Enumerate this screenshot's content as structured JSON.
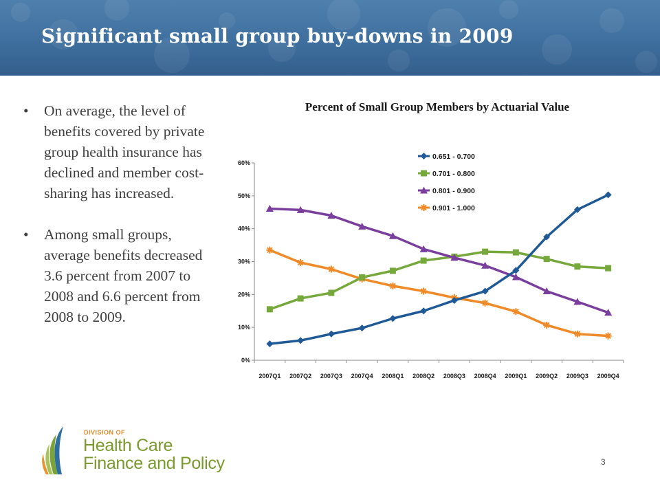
{
  "slide": {
    "title": "Significant small group buy-downs in 2009",
    "page_number": "3"
  },
  "bullets": [
    {
      "marker": "•",
      "text": "On average, the level of benefits covered by private group health insurance has declined and member cost-sharing has increased."
    },
    {
      "marker": "•",
      "text": "Among small groups, average benefits decreased 3.6 percent from 2007 to 2008 and 6.6 percent from 2008 to 2009."
    }
  ],
  "organization": {
    "prefix": "DIVISION OF",
    "line1": "Health Care",
    "line2": "Finance and Policy"
  },
  "colors": {
    "header": "#3f6f9e",
    "series": [
      "#1f5a96",
      "#76a83c",
      "#7a3f9d",
      "#f08a28"
    ]
  },
  "chart_data": {
    "type": "line",
    "title": "Percent of Small Group Members by Actuarial Value",
    "xlabel": "",
    "ylabel": "",
    "categories": [
      "2007Q1",
      "2007Q2",
      "2007Q3",
      "2007Q4",
      "2008Q1",
      "2008Q2",
      "2008Q3",
      "2008Q4",
      "2009Q1",
      "2009Q2",
      "2009Q3",
      "2009Q4"
    ],
    "ylim": [
      0,
      60
    ],
    "y_ticks": [
      0,
      10,
      20,
      30,
      40,
      50,
      60
    ],
    "y_tick_labels": [
      "0%",
      "10%",
      "20%",
      "30%",
      "40%",
      "50%",
      "60%"
    ],
    "grid": false,
    "legend_position": "top-center",
    "series": [
      {
        "name": "0.651 - 0.700",
        "marker": "diamond",
        "values": [
          5,
          6,
          8,
          9.8,
          12.7,
          15,
          18.2,
          21,
          27.3,
          37.5,
          45.8,
          50.3
        ]
      },
      {
        "name": "0.701 - 0.800",
        "marker": "square",
        "values": [
          15.5,
          18.8,
          20.5,
          25.2,
          27.2,
          30.3,
          31.5,
          33,
          32.8,
          30.8,
          28.5,
          28
        ]
      },
      {
        "name": "0.801 - 0.900",
        "marker": "triangle",
        "values": [
          46.1,
          45.7,
          44,
          40.7,
          37.8,
          33.8,
          31.2,
          28.8,
          25.3,
          21,
          17.8,
          14.5
        ]
      },
      {
        "name": "0.901 - 1.000",
        "marker": "asterisk",
        "values": [
          33.5,
          29.7,
          27.7,
          24.7,
          22.6,
          21,
          19,
          17.4,
          14.8,
          10.7,
          8,
          7.4
        ]
      }
    ]
  }
}
